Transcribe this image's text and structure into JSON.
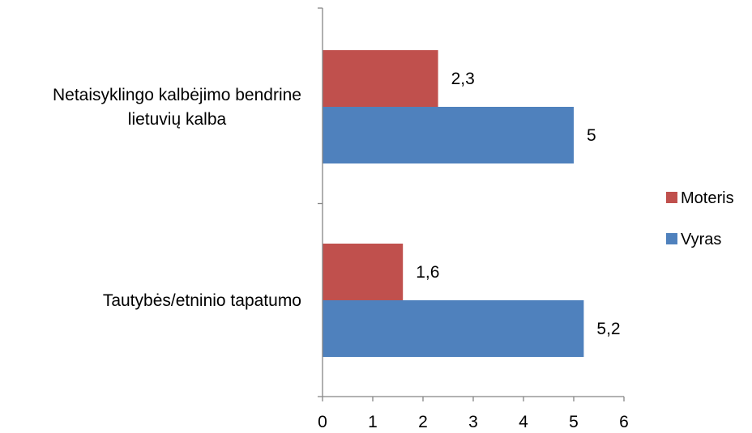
{
  "chart_data": {
    "type": "bar",
    "orientation": "horizontal",
    "categories": [
      [
        "Netaisyklingo kalbėjimo bendrine",
        "lietuvių kalba"
      ],
      [
        "Tautybės/etninio tapatumo"
      ]
    ],
    "series": [
      {
        "name": "Moteris",
        "color": "#c0504d",
        "values": [
          2.3,
          1.6
        ],
        "labels": [
          "2,3",
          "1,6"
        ]
      },
      {
        "name": "Vyras",
        "color": "#4f81bd",
        "values": [
          5,
          5.2
        ],
        "labels": [
          "5",
          "5,2"
        ]
      }
    ],
    "xlim": [
      0,
      6
    ],
    "xticks": [
      0,
      1,
      2,
      3,
      4,
      5,
      6
    ],
    "grid": false,
    "legend": "right",
    "title": "",
    "xlabel": "",
    "ylabel": ""
  }
}
